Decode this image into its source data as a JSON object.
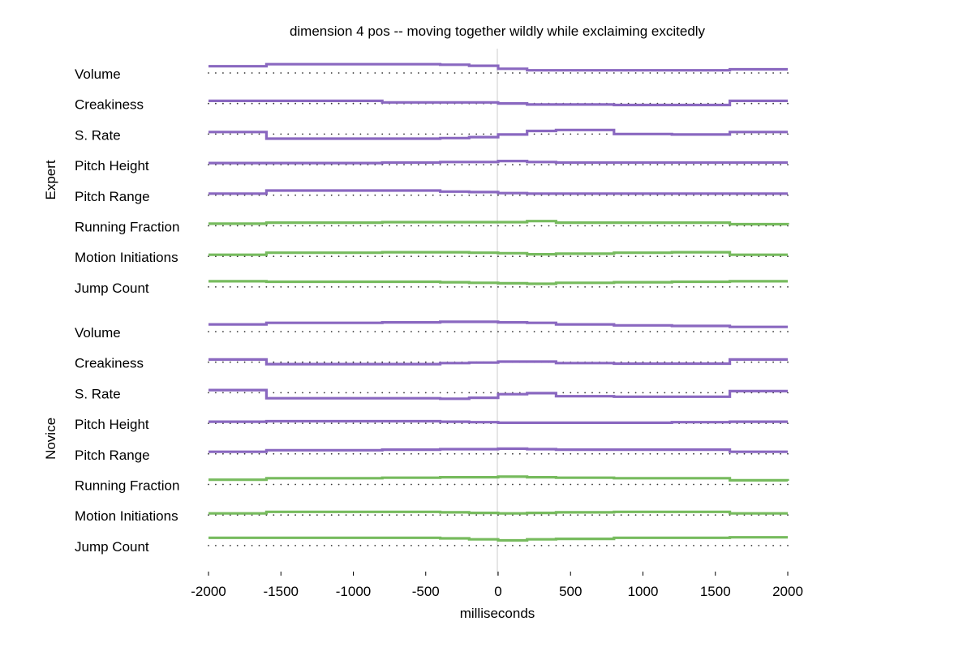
{
  "chart_data": {
    "type": "line",
    "title": "dimension 4 pos -- moving together wildly while exclaiming excitedly",
    "xlabel": "milliseconds",
    "xlim": [
      -2000,
      2000
    ],
    "xticks": [
      -2000,
      -1500,
      -1000,
      -500,
      0,
      500,
      1000,
      1500,
      2000
    ],
    "vertical_reference_at": 0,
    "grid": false,
    "colors": {
      "prosody": "#8a68c0",
      "motion": "#77bb5e",
      "reference": "#cccccc"
    },
    "groups": [
      {
        "name": "Expert",
        "tracks": [
          {
            "name": "Volume",
            "kind": "prosody",
            "values": [
              0.5,
              0.7,
              0.7,
              0.65,
              0.55,
              0.25,
              0.1,
              0.1,
              0.1,
              0.1,
              0.2,
              0.2
            ]
          },
          {
            "name": "Creakiness",
            "kind": "prosody",
            "values": [
              0.1,
              0.1,
              -0.05,
              -0.05,
              -0.05,
              -0.15,
              -0.25,
              -0.25,
              -0.3,
              -0.3,
              0.1,
              0.1
            ]
          },
          {
            "name": "S. Rate",
            "kind": "prosody",
            "values": [
              0.05,
              -0.6,
              -0.6,
              -0.55,
              -0.45,
              -0.2,
              0.15,
              0.25,
              -0.15,
              -0.2,
              0.05,
              0.05
            ]
          },
          {
            "name": "Pitch Height",
            "kind": "prosody",
            "values": [
              0.0,
              0.0,
              0.05,
              0.1,
              0.1,
              0.2,
              0.1,
              0.05,
              0.05,
              0.05,
              0.05,
              0.05
            ]
          },
          {
            "name": "Pitch Range",
            "kind": "prosody",
            "values": [
              0.0,
              0.3,
              0.3,
              0.2,
              0.15,
              0.05,
              0.0,
              0.0,
              0.0,
              0.0,
              0.0,
              0.0
            ]
          },
          {
            "name": "Running Fraction",
            "kind": "motion",
            "values": [
              0.05,
              0.15,
              0.2,
              0.2,
              0.2,
              0.2,
              0.3,
              0.15,
              0.15,
              0.15,
              0.0,
              -0.05
            ]
          },
          {
            "name": "Motion Initiations",
            "kind": "motion",
            "values": [
              0.0,
              0.2,
              0.25,
              0.25,
              0.2,
              0.15,
              0.05,
              0.1,
              0.2,
              0.25,
              0.0,
              0.0
            ]
          },
          {
            "name": "Jump Count",
            "kind": "motion",
            "values": [
              0.4,
              0.35,
              0.35,
              0.3,
              0.25,
              0.2,
              0.15,
              0.25,
              0.3,
              0.35,
              0.4,
              0.4
            ]
          }
        ]
      },
      {
        "name": "Novice",
        "tracks": [
          {
            "name": "Volume",
            "kind": "prosody",
            "values": [
              0.55,
              0.7,
              0.75,
              0.8,
              0.8,
              0.75,
              0.7,
              0.55,
              0.45,
              0.4,
              0.3,
              0.3
            ]
          },
          {
            "name": "Creakiness",
            "kind": "prosody",
            "values": [
              0.1,
              -0.35,
              -0.35,
              -0.25,
              -0.2,
              -0.1,
              -0.1,
              -0.25,
              -0.3,
              -0.3,
              0.1,
              0.1
            ]
          },
          {
            "name": "S. Rate",
            "kind": "prosody",
            "values": [
              0.1,
              -0.7,
              -0.7,
              -0.75,
              -0.65,
              -0.3,
              -0.2,
              -0.5,
              -0.55,
              -0.55,
              0.0,
              0.0
            ]
          },
          {
            "name": "Pitch Height",
            "kind": "prosody",
            "values": [
              0.0,
              0.05,
              0.05,
              0.0,
              -0.05,
              -0.1,
              -0.1,
              -0.1,
              -0.1,
              -0.05,
              0.0,
              0.0
            ]
          },
          {
            "name": "Pitch Range",
            "kind": "prosody",
            "values": [
              0.05,
              0.2,
              0.25,
              0.3,
              0.3,
              0.35,
              0.3,
              0.25,
              0.25,
              0.25,
              0.05,
              0.05
            ]
          },
          {
            "name": "Running Fraction",
            "kind": "motion",
            "values": [
              0.3,
              0.45,
              0.5,
              0.55,
              0.55,
              0.6,
              0.55,
              0.5,
              0.45,
              0.45,
              0.25,
              0.2
            ]
          },
          {
            "name": "Motion Initiations",
            "kind": "motion",
            "values": [
              0.0,
              0.15,
              0.15,
              0.1,
              0.05,
              0.0,
              0.05,
              0.1,
              0.15,
              0.15,
              0.0,
              0.0
            ]
          },
          {
            "name": "Jump Count",
            "kind": "motion",
            "values": [
              0.6,
              0.6,
              0.6,
              0.55,
              0.45,
              0.35,
              0.45,
              0.5,
              0.6,
              0.6,
              0.65,
              0.65
            ]
          }
        ]
      }
    ],
    "segment_breaks_ms": [
      -2000,
      -1600,
      -800,
      -400,
      -200,
      0,
      200,
      400,
      800,
      1200,
      1600,
      2000,
      2000
    ]
  }
}
